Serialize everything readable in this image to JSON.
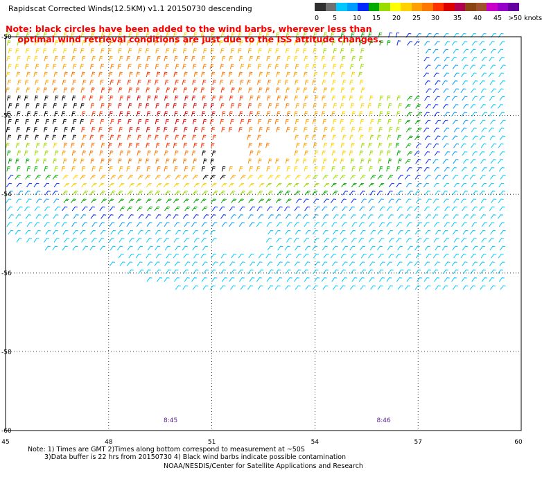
{
  "title": "Rapidscat Corrected Winds(12.5KM) v1.1 20150730 descending",
  "note": {
    "line1": "Note: black circles have been added to the wind barbs, wherever less than",
    "line2": "optimal wind retrieval conditions are just due to the ISS attitude changes."
  },
  "legend": {
    "labels": [
      "0",
      "5",
      "10",
      "15",
      "20",
      "25",
      "30",
      "35",
      "40",
      "45",
      ">50 knots"
    ],
    "colors": [
      "#303030",
      "#707070",
      "#00c8ff",
      "#009bff",
      "#0028ff",
      "#00aa00",
      "#9bdc00",
      "#ffff00",
      "#ffd200",
      "#ffa000",
      "#ff7800",
      "#ff3200",
      "#dc0000",
      "#b40050",
      "#8b4513",
      "#a0522d",
      "#c800c8",
      "#9600c8",
      "#6400a0"
    ]
  },
  "map": {
    "lon_min": 45,
    "lon_max": 60,
    "lat_min": -60,
    "lat_max": -50,
    "x_ticks": [
      "45",
      "48",
      "51",
      "54",
      "57",
      "60"
    ],
    "x_tick_values": [
      45,
      48,
      51,
      54,
      57,
      60
    ],
    "y_ticks": [
      "-50",
      "-52",
      "-54",
      "-56",
      "-58",
      "-60"
    ],
    "y_tick_values": [
      -50,
      -52,
      -54,
      -56,
      -58,
      -60
    ],
    "time_labels": [
      {
        "text": "8:45",
        "lon": 49.8
      },
      {
        "text": "8:46",
        "lon": 56.0
      }
    ]
  },
  "footer": {
    "line1": "Note: 1) Times are GMT 2)Times along bottom correspond to measurement at ~50S",
    "line2": "3)Data buffer is 22 hrs from 20150730 4) Black wind barbs indicate possible contamination",
    "line3": "NOAA/NESDIS/Center for Satellite Applications and Research"
  }
}
